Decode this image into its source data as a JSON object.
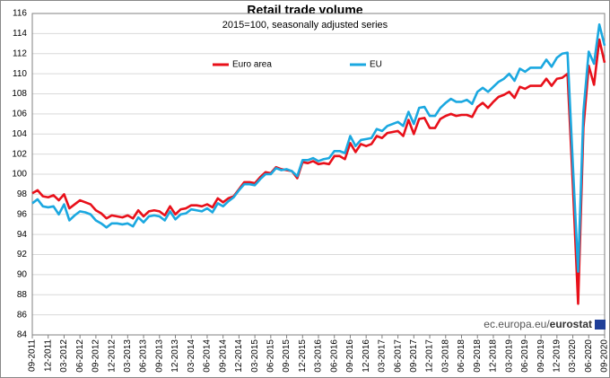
{
  "chart_data": {
    "type": "line",
    "title": "Retail trade volume",
    "subtitle": "2015=100, seasonally adjusted series",
    "source": {
      "prefix": "ec.europa.eu/",
      "brand": "eurostat"
    },
    "categories": [
      "09-2011",
      null,
      null,
      "12-2011",
      null,
      null,
      "03-2012",
      null,
      null,
      "06-2012",
      null,
      null,
      "09-2012",
      null,
      null,
      "12-2012",
      null,
      null,
      "03-2013",
      null,
      null,
      "06-2013",
      null,
      null,
      "09-2013",
      null,
      null,
      "12-2013",
      null,
      null,
      "03-2014",
      null,
      null,
      "06-2014",
      null,
      null,
      "09-2014",
      null,
      null,
      "12-2014",
      null,
      null,
      "03-2015",
      null,
      null,
      "06-2015",
      null,
      null,
      "09-2015",
      null,
      null,
      "12-2015",
      null,
      null,
      "03-2016",
      null,
      null,
      "06-2016",
      null,
      null,
      "09-2016",
      null,
      null,
      "12-2016",
      null,
      null,
      "03-2017",
      null,
      null,
      "06-2017",
      null,
      null,
      "09-2017",
      null,
      null,
      "12-2017",
      null,
      null,
      "03-2018",
      null,
      null,
      "06-2018",
      null,
      null,
      "09-2018",
      null,
      null,
      "12-2018",
      null,
      null,
      "03-2019",
      null,
      null,
      "06-2019",
      null,
      null,
      "09-2019",
      null,
      null,
      "12-2019",
      null,
      null,
      "03-2020",
      null,
      null,
      "06-2020",
      null,
      null,
      "09-2020"
    ],
    "series": [
      {
        "name": "Euro area",
        "color": "#e8101a",
        "values": [
          98.1,
          98.4,
          97.8,
          97.7,
          97.9,
          97.4,
          98.0,
          96.6,
          97.0,
          97.4,
          97.2,
          97.0,
          96.4,
          96.1,
          95.6,
          95.9,
          95.8,
          95.7,
          95.9,
          95.6,
          96.4,
          95.8,
          96.3,
          96.4,
          96.3,
          95.9,
          96.8,
          96.0,
          96.5,
          96.6,
          96.9,
          96.9,
          96.8,
          97.0,
          96.7,
          97.6,
          97.2,
          97.6,
          97.8,
          98.5,
          99.2,
          99.2,
          99.1,
          99.7,
          100.2,
          100.1,
          100.7,
          100.5,
          100.4,
          100.3,
          99.6,
          101.2,
          101.1,
          101.3,
          101.0,
          101.1,
          101.0,
          101.8,
          101.8,
          101.5,
          103.1,
          102.2,
          103.0,
          102.8,
          103.0,
          103.8,
          103.6,
          104.1,
          104.2,
          104.3,
          103.8,
          105.4,
          104.0,
          105.5,
          105.6,
          104.6,
          104.6,
          105.5,
          105.8,
          106.0,
          105.8,
          105.9,
          105.9,
          105.7,
          106.7,
          107.1,
          106.6,
          107.2,
          107.7,
          107.9,
          108.2,
          107.6,
          108.7,
          108.5,
          108.8,
          108.8,
          108.8,
          109.5,
          108.8,
          109.5,
          109.6,
          110.0,
          99.0,
          87.1,
          104.6,
          110.8,
          108.9,
          113.4,
          111.1
        ]
      },
      {
        "name": "EU",
        "color": "#1ba8e0",
        "values": [
          97.1,
          97.5,
          96.8,
          96.7,
          96.8,
          96.0,
          97.0,
          95.4,
          95.9,
          96.3,
          96.2,
          96.0,
          95.4,
          95.1,
          94.7,
          95.1,
          95.1,
          95.0,
          95.1,
          94.8,
          95.7,
          95.2,
          95.8,
          95.9,
          95.8,
          95.4,
          96.3,
          95.5,
          96.0,
          96.1,
          96.5,
          96.4,
          96.3,
          96.6,
          96.2,
          97.1,
          96.8,
          97.3,
          97.7,
          98.4,
          99.0,
          99.0,
          98.9,
          99.5,
          100.0,
          100.0,
          100.6,
          100.4,
          100.5,
          100.3,
          99.8,
          101.4,
          101.4,
          101.6,
          101.3,
          101.5,
          101.6,
          102.3,
          102.3,
          102.1,
          103.8,
          102.8,
          103.4,
          103.5,
          103.6,
          104.5,
          104.3,
          104.8,
          105.0,
          105.2,
          104.8,
          106.2,
          105.0,
          106.6,
          106.7,
          105.8,
          105.8,
          106.6,
          107.1,
          107.5,
          107.2,
          107.2,
          107.4,
          107.0,
          108.2,
          108.6,
          108.2,
          108.7,
          109.2,
          109.5,
          110.0,
          109.3,
          110.5,
          110.2,
          110.6,
          110.6,
          110.6,
          111.4,
          110.7,
          111.6,
          112.0,
          112.1,
          101.0,
          90.3,
          106.2,
          112.2,
          111.0,
          114.9,
          112.8
        ]
      }
    ],
    "ylim": [
      84,
      116
    ],
    "yticks": [
      84,
      86,
      88,
      90,
      92,
      94,
      96,
      98,
      100,
      102,
      104,
      106,
      108,
      110,
      112,
      114,
      116
    ],
    "grid": true
  }
}
